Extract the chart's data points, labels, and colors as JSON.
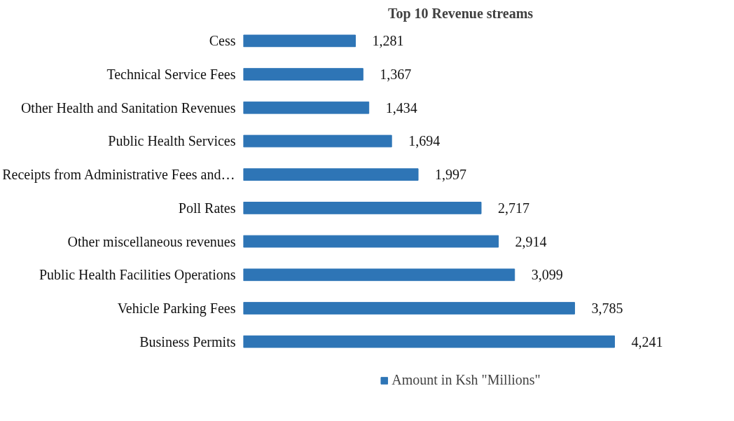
{
  "chart_data": {
    "type": "bar",
    "orientation": "horizontal",
    "title": "Top 10 Revenue streams",
    "categories": [
      "Cess",
      "Technical Service Fees",
      "Other Health and Sanitation Revenues",
      "Public Health Services",
      "Receipts from Administrative Fees and…",
      "Poll Rates",
      "Other miscellaneous revenues",
      "Public Health Facilities Operations",
      "Vehicle Parking Fees",
      "Business Permits"
    ],
    "series": [
      {
        "name": "Amount in Ksh \"Millions\"",
        "color": "#2e75b6",
        "values": [
          1281,
          1367,
          1434,
          1694,
          1997,
          2717,
          2914,
          3099,
          3785,
          4241
        ],
        "value_labels": [
          "1,281",
          "1,367",
          "1,434",
          "1,694",
          "1,997",
          "2,717",
          "2,914",
          "3,099",
          "3,785",
          "4,241"
        ]
      }
    ],
    "legend": "bottom",
    "grid": false
  }
}
